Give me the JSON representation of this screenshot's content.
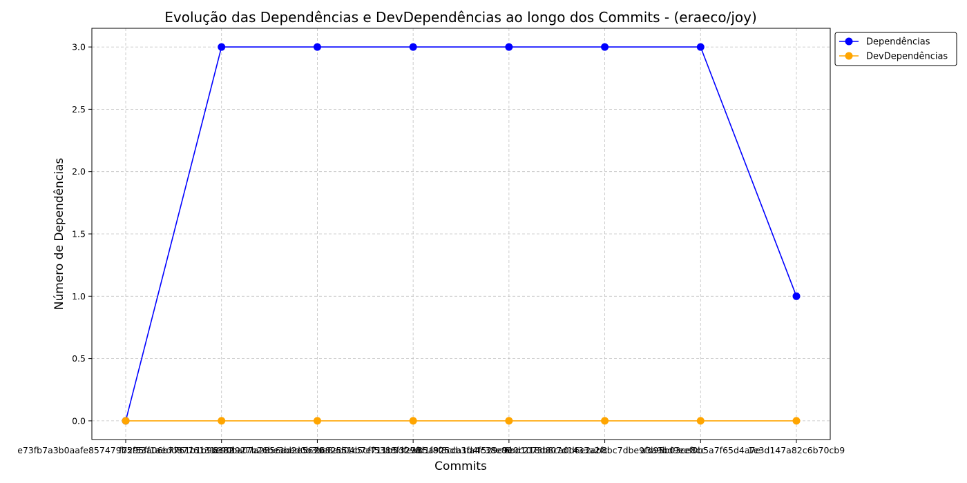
{
  "chart_data": {
    "type": "line",
    "title": "Evolução das Dependências e DevDependências ao longo dos Commits - (eraeco/joy)",
    "xlabel": "Commits",
    "ylabel": "Número de Dependências",
    "categories": [
      "e73fb7a3b0aafe857479b5f53a06b7761b1b96382",
      "f7295ff1aedd8776131e90ba07a2856ad2e5670",
      "8c3d927b26be3bed0b3be8ad04b7ef5388f3278",
      "2682551c5cf711b5dfea85a925db3fa4c38e00",
      "9fd1f8f8cca1d4f529c9e0c218d807d1433a2fc",
      "6bd1073b8ca0d6e2ab8bc7dbe9fd95b03ce8cc",
      "a3a9bd9eef0b5a7f65d4a7e",
      "1e3d147a82c6b70cb9"
    ],
    "series": [
      {
        "name": "Dependências",
        "color": "#0000ff",
        "values": [
          0,
          3,
          3,
          3,
          3,
          3,
          3,
          1
        ]
      },
      {
        "name": "DevDependências",
        "color": "#ffa500",
        "values": [
          0,
          0,
          0,
          0,
          0,
          0,
          0,
          0
        ]
      }
    ],
    "ylim": [
      -0.15,
      3.15
    ],
    "yticks": [
      "0.0",
      "0.5",
      "1.0",
      "1.5",
      "2.0",
      "2.5",
      "3.0"
    ],
    "grid": true,
    "legend": "top-right outside"
  }
}
